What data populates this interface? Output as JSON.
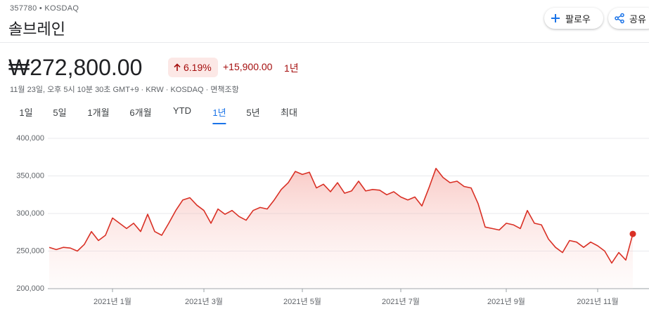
{
  "header": {
    "symbol": "357780 • KOSDAQ",
    "name": "솔브레인",
    "follow": "팔로우",
    "share": "공유",
    "price": "₩272,800.00",
    "change_percent": "6.19%",
    "change": "+15,900.00",
    "period": "1년",
    "quote_info": "11월 23일, 오후 5시 10분 30초 GMT+9 · KRW · KOSDAQ · 면책조항",
    "tabs": [
      "1일",
      "5일",
      "1개월",
      "6개월",
      "YTD",
      "1년",
      "5년",
      "최대"
    ],
    "active_tab": 5
  },
  "chart_data": {
    "type": "line",
    "color": "#d93025",
    "categories": [
      null,
      null,
      null,
      null,
      null,
      null,
      null,
      null,
      null,
      "2021년 1월",
      null,
      null,
      null,
      null,
      null,
      null,
      null,
      null,
      null,
      null,
      null,
      null,
      "2021년 3월",
      null,
      null,
      null,
      null,
      null,
      null,
      null,
      null,
      null,
      null,
      null,
      null,
      null,
      "2021년 5월",
      null,
      null,
      null,
      null,
      null,
      null,
      null,
      null,
      null,
      null,
      null,
      null,
      null,
      "2021년 7월",
      null,
      null,
      null,
      null,
      null,
      null,
      null,
      null,
      null,
      null,
      null,
      null,
      null,
      null,
      "2021년 9월",
      null,
      null,
      null,
      null,
      null,
      null,
      null,
      null,
      null,
      null,
      null,
      null,
      "2021년 11월",
      null,
      null,
      null,
      null,
      null
    ],
    "values": [
      255000,
      252000,
      255000,
      254000,
      250000,
      259000,
      276000,
      264000,
      271000,
      294000,
      287000,
      280000,
      287000,
      276000,
      299000,
      276000,
      271000,
      287000,
      304000,
      318000,
      321000,
      311000,
      304000,
      287000,
      306000,
      299000,
      304000,
      296000,
      291000,
      304000,
      308000,
      306000,
      318000,
      332000,
      341000,
      356000,
      352000,
      355000,
      334000,
      339000,
      329000,
      341000,
      327000,
      330000,
      343000,
      330000,
      332000,
      331000,
      325000,
      329000,
      322000,
      318000,
      322000,
      310000,
      334000,
      360000,
      348000,
      341000,
      343000,
      336000,
      334000,
      313000,
      282000,
      280000,
      278000,
      287000,
      285000,
      280000,
      304000,
      287000,
      285000,
      266000,
      255000,
      248000,
      264000,
      262000,
      255000,
      262000,
      257000,
      250000,
      234000,
      248000,
      238000,
      272800
    ],
    "ylim": [
      200000,
      400000
    ],
    "yticks": [
      {
        "value": 200000,
        "label": "200,000"
      },
      {
        "value": 250000,
        "label": "250,000"
      },
      {
        "value": 300000,
        "label": "300,000"
      },
      {
        "value": 350000,
        "label": "350,000"
      },
      {
        "value": 400000,
        "label": "400,000"
      }
    ],
    "grid": true
  }
}
